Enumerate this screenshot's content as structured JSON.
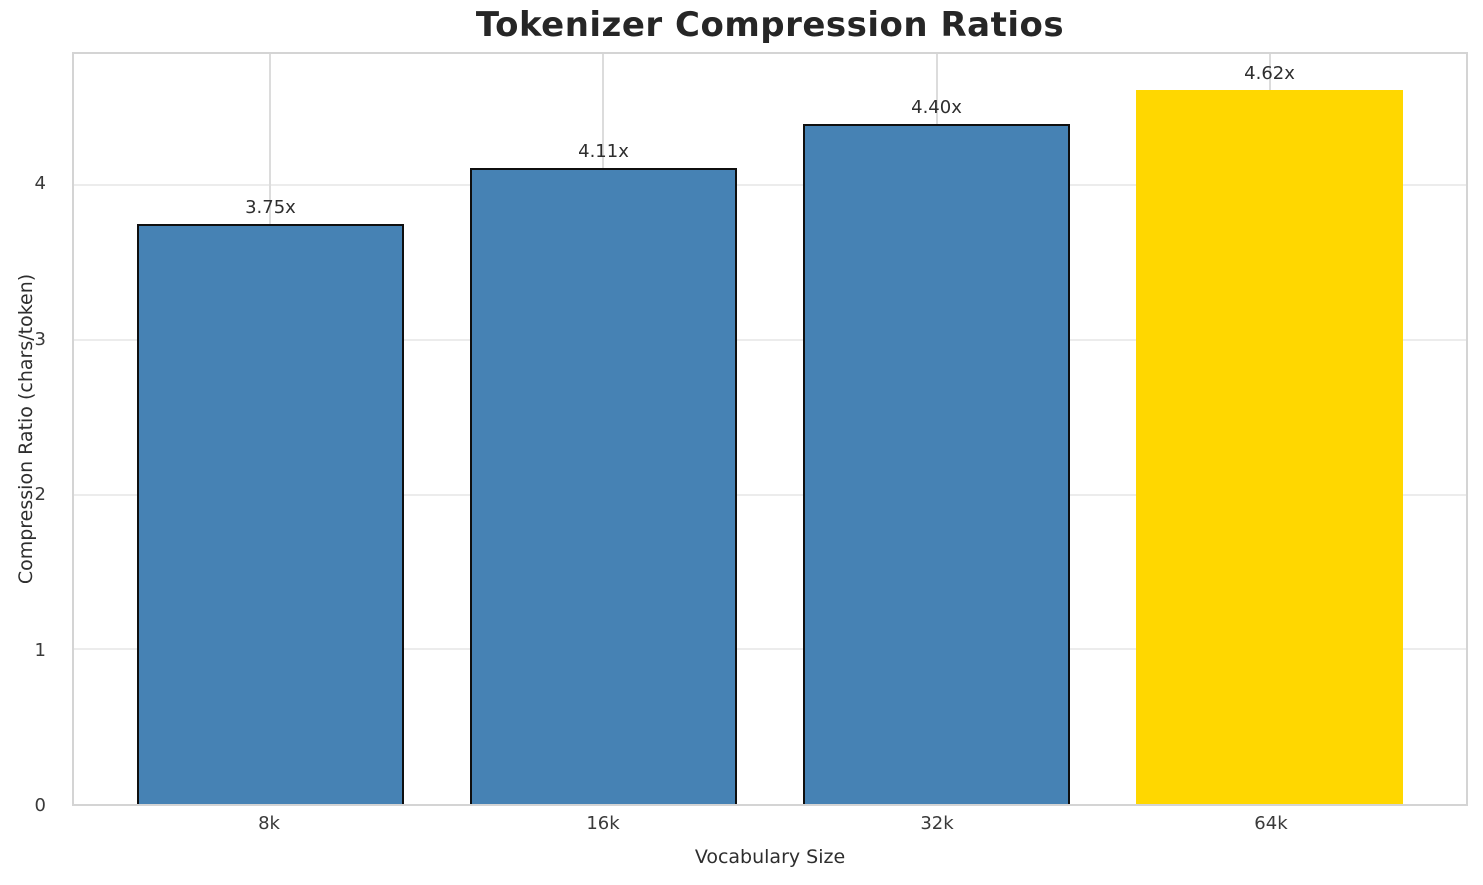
{
  "chart_data": {
    "type": "bar",
    "title": "Tokenizer Compression Ratios",
    "xlabel": "Vocabulary Size",
    "ylabel": "Compression Ratio (chars/token)",
    "categories": [
      "8k",
      "16k",
      "32k",
      "64k"
    ],
    "values": [
      3.75,
      4.11,
      4.4,
      4.62
    ],
    "bar_labels": [
      "3.75x",
      "4.11x",
      "4.40x",
      "4.62x"
    ],
    "yticks": [
      0,
      1,
      2,
      3,
      4
    ],
    "ylim": [
      0,
      4.85
    ],
    "highlight_index": 3,
    "grid": true,
    "legend_position": "none",
    "colors": {
      "bar": "#4682B4",
      "highlight": "#FFD700",
      "bar_edge": "#0f0f0f",
      "grid_h": "#ececec",
      "grid_v": "#dcdcdc",
      "spine": "#d4d4d4",
      "title_text": "#262626",
      "label_text": "#2e2e2e",
      "tick_text": "#3a3a3a"
    }
  }
}
